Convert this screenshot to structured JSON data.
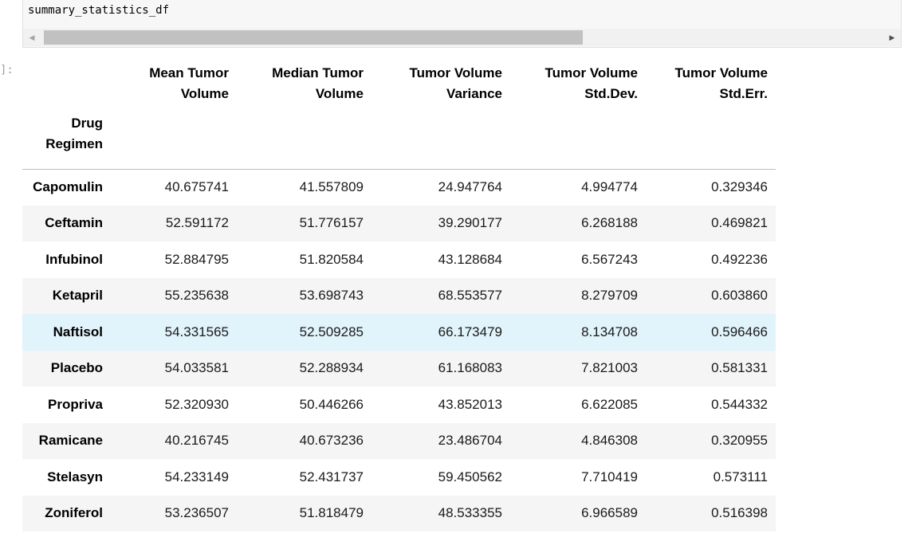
{
  "input_cell": {
    "code": "summary_statistics_df"
  },
  "output_cell": {
    "prompt": "]:",
    "table": {
      "columns": [
        [
          "Mean Tumor",
          "Volume"
        ],
        [
          "Median Tumor",
          "Volume"
        ],
        [
          "Tumor Volume",
          "Variance"
        ],
        [
          "Tumor Volume",
          "Std.Dev."
        ],
        [
          "Tumor Volume",
          "Std.Err."
        ]
      ],
      "index_name": [
        "Drug",
        "Regimen"
      ],
      "rows": [
        {
          "label": "Capomulin",
          "values": [
            "40.675741",
            "41.557809",
            "24.947764",
            "4.994774",
            "0.329346"
          ]
        },
        {
          "label": "Ceftamin",
          "values": [
            "52.591172",
            "51.776157",
            "39.290177",
            "6.268188",
            "0.469821"
          ]
        },
        {
          "label": "Infubinol",
          "values": [
            "52.884795",
            "51.820584",
            "43.128684",
            "6.567243",
            "0.492236"
          ]
        },
        {
          "label": "Ketapril",
          "values": [
            "55.235638",
            "53.698743",
            "68.553577",
            "8.279709",
            "0.603860"
          ]
        },
        {
          "label": "Naftisol",
          "values": [
            "54.331565",
            "52.509285",
            "66.173479",
            "8.134708",
            "0.596466"
          ]
        },
        {
          "label": "Placebo",
          "values": [
            "54.033581",
            "52.288934",
            "61.168083",
            "7.821003",
            "0.581331"
          ]
        },
        {
          "label": "Propriva",
          "values": [
            "52.320930",
            "50.446266",
            "43.852013",
            "6.622085",
            "0.544332"
          ]
        },
        {
          "label": "Ramicane",
          "values": [
            "40.216745",
            "40.673236",
            "23.486704",
            "4.846308",
            "0.320955"
          ]
        },
        {
          "label": "Stelasyn",
          "values": [
            "54.233149",
            "52.431737",
            "59.450562",
            "7.710419",
            "0.573111"
          ]
        },
        {
          "label": "Zoniferol",
          "values": [
            "53.236507",
            "51.818479",
            "48.533355",
            "6.966589",
            "0.516398"
          ]
        }
      ],
      "hovered_row": "Naftisol"
    }
  },
  "colors": {
    "row_stripe": "#f5f5f5",
    "row_hover": "#e1f3fb",
    "scroll_thumb": "#c1c1c1"
  },
  "icons": {
    "scroll_left": "triangle-left-icon",
    "scroll_right": "triangle-right-icon"
  }
}
